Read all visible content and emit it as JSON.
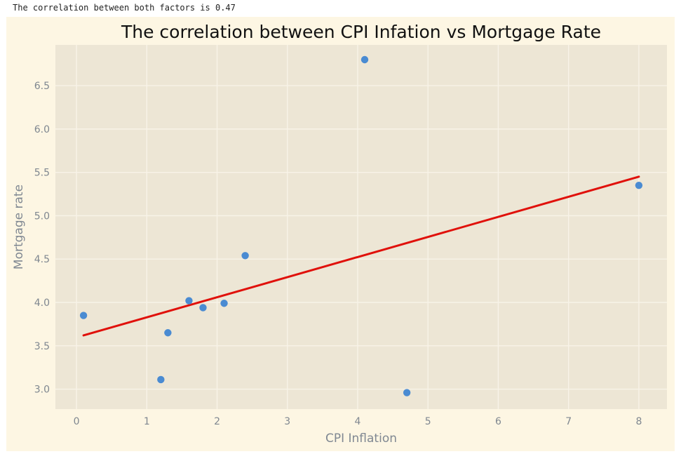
{
  "output": {
    "text": "The correlation between both factors is 0.47"
  },
  "colors": {
    "figure_background": "#fdf6e3",
    "plot_background": "#ede6d5",
    "grid": "#f8f3e8",
    "points": "#4a8bd2",
    "trend_line": "#e0110b"
  },
  "chart_data": {
    "type": "scatter",
    "title": "The correlation between CPI Infation vs Mortgage Rate",
    "xlabel": "CPI Inflation",
    "ylabel": "Mortgage rate",
    "xlim": [
      -0.3,
      8.4
    ],
    "ylim": [
      2.77,
      6.97
    ],
    "grid": true,
    "x_ticks": [
      0,
      1,
      2,
      3,
      4,
      5,
      6,
      7,
      8
    ],
    "x_tick_labels": [
      "0",
      "1",
      "2",
      "3",
      "4",
      "5",
      "6",
      "7",
      "8"
    ],
    "y_ticks": [
      3.0,
      3.5,
      4.0,
      4.5,
      5.0,
      5.5,
      6.0,
      6.5
    ],
    "y_tick_labels": [
      "3.0",
      "3.5",
      "4.0",
      "4.5",
      "5.0",
      "5.5",
      "6.0",
      "6.5"
    ],
    "points": [
      {
        "x": 0.1,
        "y": 3.85
      },
      {
        "x": 1.2,
        "y": 3.11
      },
      {
        "x": 1.3,
        "y": 3.65
      },
      {
        "x": 1.6,
        "y": 4.02
      },
      {
        "x": 1.8,
        "y": 3.94
      },
      {
        "x": 2.1,
        "y": 3.99
      },
      {
        "x": 2.4,
        "y": 4.54
      },
      {
        "x": 4.1,
        "y": 6.8
      },
      {
        "x": 4.7,
        "y": 2.96
      },
      {
        "x": 8.0,
        "y": 5.35
      }
    ],
    "trend_line": {
      "x": [
        0.1,
        8.0
      ],
      "y": [
        3.62,
        5.45
      ]
    }
  }
}
